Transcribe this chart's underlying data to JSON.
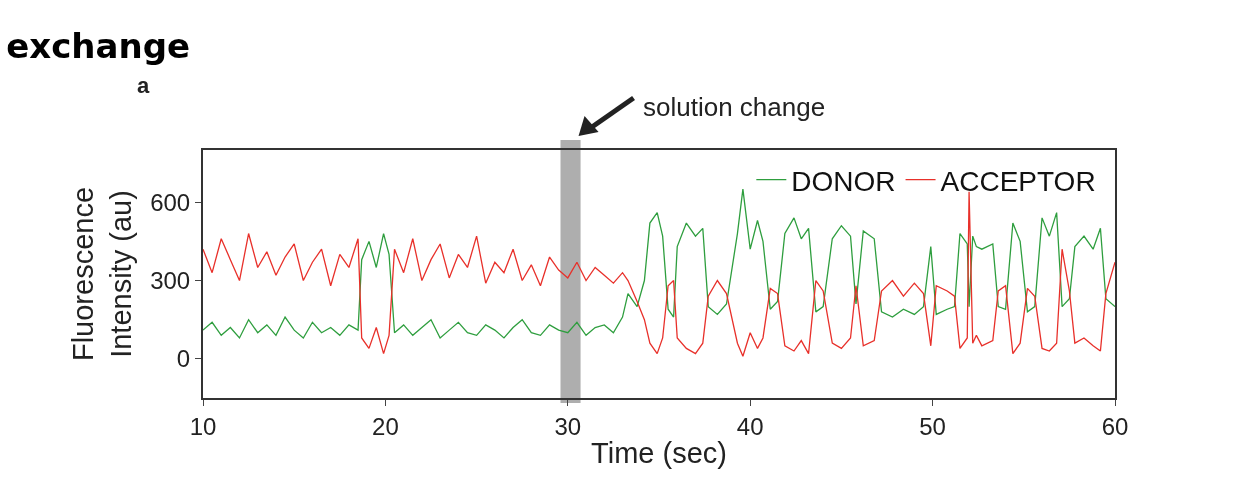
{
  "chart_data": {
    "type": "line",
    "title": "exchange",
    "xlabel": "Time (sec)",
    "ylabel": "Fluorescence\nIntensity (au)",
    "annotations": [
      "a"
    ],
    "x": [
      10,
      10.5,
      11,
      11.5,
      12,
      12.5,
      13,
      13.5,
      14,
      14.5,
      15,
      15.5,
      16,
      16.5,
      17,
      17.5,
      18,
      18.5,
      18.7,
      19.1,
      19.5,
      19.9,
      20.2,
      20.5,
      21,
      21.5,
      22,
      22.5,
      23,
      23.5,
      24,
      24.5,
      25,
      25.5,
      26,
      26.5,
      27,
      27.5,
      28,
      28.5,
      29,
      29.5,
      30,
      30.5,
      31,
      31.5,
      32,
      32.5,
      33,
      33.3,
      33.8,
      34.2,
      34.5,
      34.9,
      35.2,
      35.5,
      35.8,
      36,
      36.5,
      37,
      37.4,
      37.7,
      38.2,
      38.7,
      39.3,
      39.6,
      40,
      40.4,
      40.7,
      41.1,
      41.5,
      41.9,
      42.4,
      42.8,
      43.2,
      43.6,
      44,
      44.5,
      45,
      45.5,
      45.8,
      46.2,
      46.8,
      47.2,
      47.8,
      48.4,
      49,
      49.5,
      49.9,
      50.2,
      50.8,
      51.2,
      51.5,
      51.9,
      52,
      52.2,
      52.4,
      52.7,
      53.3,
      53.6,
      54,
      54.4,
      54.8,
      55.2,
      55.6,
      56,
      56.4,
      56.8,
      57.1,
      57.5,
      57.8,
      58.3,
      58.8,
      59.2,
      59.5,
      60
    ],
    "series": [
      {
        "name": "DONOR",
        "color": "#2e9e3e",
        "values": [
          110,
          140,
          90,
          120,
          80,
          150,
          100,
          130,
          90,
          160,
          110,
          80,
          140,
          100,
          120,
          90,
          130,
          110,
          380,
          450,
          350,
          480,
          400,
          100,
          130,
          90,
          120,
          150,
          80,
          110,
          140,
          100,
          90,
          130,
          110,
          80,
          120,
          150,
          100,
          90,
          130,
          110,
          100,
          140,
          90,
          120,
          130,
          100,
          160,
          250,
          200,
          300,
          520,
          560,
          470,
          190,
          160,
          430,
          520,
          470,
          500,
          200,
          170,
          210,
          480,
          650,
          420,
          530,
          450,
          190,
          220,
          480,
          540,
          460,
          500,
          180,
          200,
          460,
          510,
          470,
          210,
          490,
          460,
          180,
          160,
          190,
          170,
          200,
          430,
          170,
          190,
          200,
          480,
          440,
          200,
          470,
          430,
          420,
          440,
          200,
          190,
          520,
          450,
          180,
          200,
          540,
          470,
          560,
          200,
          230,
          430,
          470,
          420,
          500,
          230,
          200
        ]
      },
      {
        "name": "ACCEPTOR",
        "color": "#e8302a",
        "values": [
          420,
          330,
          460,
          380,
          300,
          480,
          350,
          410,
          320,
          390,
          440,
          300,
          370,
          420,
          280,
          400,
          350,
          460,
          80,
          40,
          120,
          20,
          90,
          420,
          330,
          460,
          300,
          380,
          440,
          310,
          400,
          350,
          470,
          290,
          370,
          330,
          420,
          300,
          360,
          280,
          390,
          340,
          310,
          370,
          300,
          350,
          320,
          290,
          330,
          300,
          220,
          150,
          60,
          20,
          80,
          280,
          300,
          80,
          40,
          20,
          60,
          240,
          300,
          250,
          60,
          10,
          100,
          40,
          80,
          270,
          250,
          50,
          30,
          70,
          20,
          300,
          260,
          60,
          40,
          80,
          280,
          50,
          70,
          260,
          300,
          240,
          290,
          250,
          50,
          280,
          260,
          240,
          40,
          80,
          640,
          60,
          90,
          50,
          70,
          260,
          280,
          20,
          60,
          270,
          240,
          40,
          30,
          60,
          420,
          260,
          60,
          80,
          50,
          30,
          250,
          370
        ]
      }
    ],
    "xlim": [
      10,
      60
    ],
    "xticks": [
      10,
      20,
      30,
      40,
      50,
      60
    ],
    "ylim": [
      -150,
      800
    ],
    "yticks": [
      0,
      300,
      600
    ],
    "bands": [
      {
        "axis": "x",
        "from": 29.6,
        "to": 30.7,
        "color": "#9a9a9a",
        "label": "solution change"
      }
    ],
    "grid": false,
    "legend": "top right"
  }
}
